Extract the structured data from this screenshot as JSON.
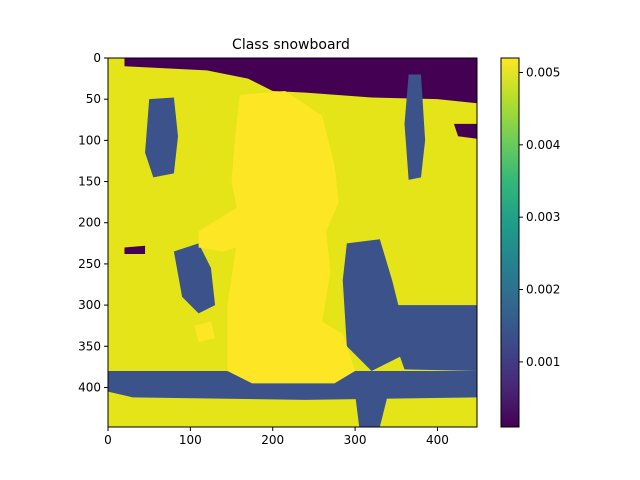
{
  "chart_data": {
    "type": "heatmap",
    "title": "Class snowboard",
    "xlabel": "",
    "ylabel": "",
    "xlim": [
      0,
      448
    ],
    "ylim": [
      448,
      0
    ],
    "x_ticks": [
      0,
      100,
      200,
      300,
      400
    ],
    "y_ticks": [
      0,
      50,
      100,
      150,
      200,
      250,
      300,
      350,
      400
    ],
    "colorbar": {
      "range": [
        0.0001,
        0.0052
      ],
      "ticks": [
        0.001,
        0.002,
        0.003,
        0.004,
        0.005
      ],
      "tick_labels": [
        "0.001",
        "0.002",
        "0.003",
        "0.004",
        "0.005"
      ],
      "colormap": "viridis"
    },
    "levels": {
      "low": "#440154",
      "mid": "#3b528b",
      "high": "#e5e419",
      "peak": "#fde725"
    },
    "regions": [
      {
        "level": "low",
        "polygon": [
          [
            20,
            0
          ],
          [
            448,
            0
          ],
          [
            448,
            55
          ],
          [
            400,
            50
          ],
          [
            320,
            48
          ],
          [
            240,
            42
          ],
          [
            200,
            40
          ],
          [
            170,
            25
          ],
          [
            120,
            15
          ],
          [
            20,
            10
          ]
        ]
      },
      {
        "level": "low",
        "polygon": [
          [
            420,
            80
          ],
          [
            448,
            80
          ],
          [
            448,
            98
          ],
          [
            425,
            95
          ]
        ]
      },
      {
        "level": "low",
        "polygon": [
          [
            20,
            230
          ],
          [
            45,
            228
          ],
          [
            45,
            238
          ],
          [
            20,
            238
          ]
        ]
      },
      {
        "level": "mid",
        "polygon": [
          [
            50,
            50
          ],
          [
            80,
            48
          ],
          [
            85,
            95
          ],
          [
            80,
            140
          ],
          [
            55,
            145
          ],
          [
            45,
            115
          ]
        ]
      },
      {
        "level": "mid",
        "polygon": [
          [
            365,
            20
          ],
          [
            380,
            20
          ],
          [
            385,
            100
          ],
          [
            380,
            145
          ],
          [
            365,
            148
          ],
          [
            360,
            80
          ]
        ]
      },
      {
        "level": "mid",
        "polygon": [
          [
            80,
            235
          ],
          [
            110,
            225
          ],
          [
            125,
            255
          ],
          [
            130,
            300
          ],
          [
            110,
            310
          ],
          [
            90,
            290
          ]
        ]
      },
      {
        "level": "mid",
        "polygon": [
          [
            0,
            380
          ],
          [
            448,
            380
          ],
          [
            448,
            412
          ],
          [
            240,
            415
          ],
          [
            30,
            412
          ],
          [
            0,
            405
          ]
        ]
      },
      {
        "level": "mid",
        "polygon": [
          [
            290,
            225
          ],
          [
            330,
            220
          ],
          [
            345,
            270
          ],
          [
            360,
            330
          ],
          [
            360,
            360
          ],
          [
            320,
            380
          ],
          [
            290,
            350
          ],
          [
            285,
            270
          ]
        ]
      },
      {
        "level": "mid",
        "polygon": [
          [
            345,
            300
          ],
          [
            448,
            300
          ],
          [
            448,
            380
          ],
          [
            360,
            378
          ],
          [
            350,
            350
          ]
        ]
      },
      {
        "level": "mid",
        "polygon": [
          [
            300,
            408
          ],
          [
            340,
            408
          ],
          [
            330,
            448
          ],
          [
            305,
            448
          ]
        ]
      },
      {
        "level": "peak",
        "polygon": [
          [
            160,
            45
          ],
          [
            215,
            40
          ],
          [
            260,
            70
          ],
          [
            275,
            130
          ],
          [
            280,
            175
          ],
          [
            265,
            210
          ],
          [
            270,
            260
          ],
          [
            260,
            320
          ],
          [
            285,
            335
          ],
          [
            300,
            380
          ],
          [
            275,
            395
          ],
          [
            175,
            395
          ],
          [
            145,
            380
          ],
          [
            145,
            300
          ],
          [
            160,
            200
          ],
          [
            150,
            150
          ],
          [
            155,
            90
          ]
        ]
      },
      {
        "level": "peak",
        "polygon": [
          [
            110,
            210
          ],
          [
            160,
            180
          ],
          [
            170,
            225
          ],
          [
            140,
            235
          ],
          [
            110,
            230
          ]
        ]
      },
      {
        "level": "peak",
        "polygon": [
          [
            105,
            325
          ],
          [
            125,
            320
          ],
          [
            130,
            340
          ],
          [
            110,
            345
          ]
        ]
      }
    ]
  }
}
